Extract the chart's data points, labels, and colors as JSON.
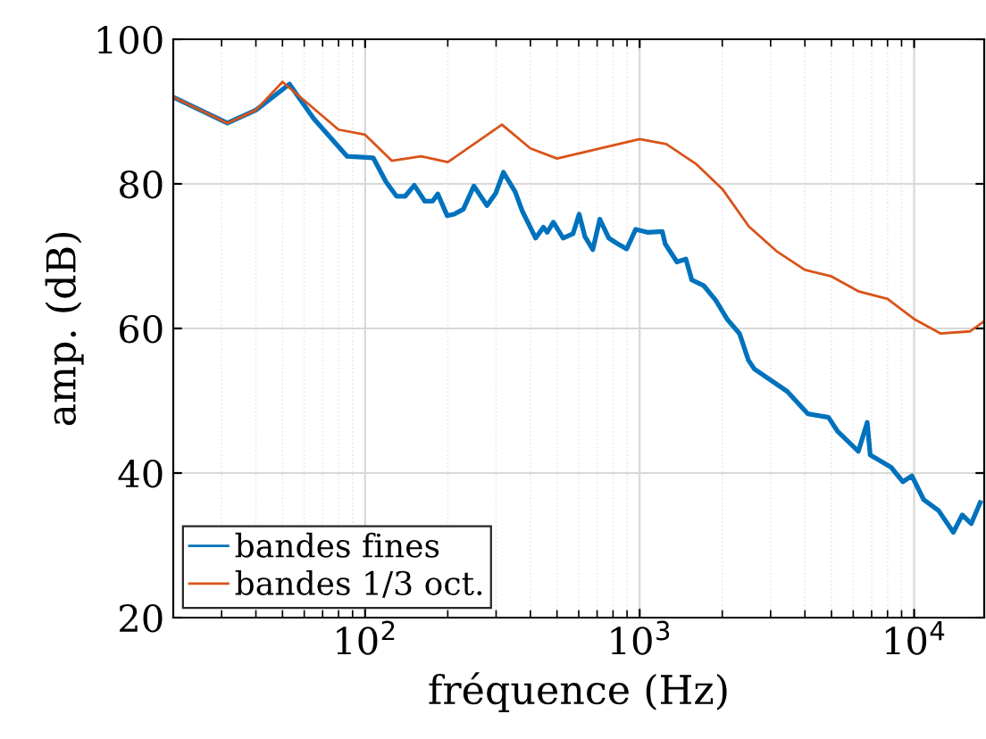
{
  "chart_data": {
    "type": "line",
    "xlabel": "fréquence (Hz)",
    "ylabel": "amp. (dB)",
    "log": "x",
    "grid": true,
    "legend": "bottom left",
    "xlim": [
      20,
      18000
    ],
    "ylim": [
      20,
      100
    ],
    "xticks": [
      {
        "value": 100,
        "label": "10$^{2}$"
      },
      {
        "value": 1000,
        "label": "10$^{3}$"
      },
      {
        "value": 10000,
        "label": "10$^{4}$"
      }
    ],
    "yticks": [
      20,
      40,
      60,
      80,
      100
    ],
    "series": [
      {
        "name": "bandes fines",
        "color": "#0072bd",
        "x": [
          20,
          31.5,
          40,
          53,
          65,
          86,
          107,
          119,
          130,
          140,
          151,
          165,
          176,
          184,
          199,
          211,
          228,
          249,
          278,
          299,
          319,
          352,
          374,
          418,
          446,
          461,
          485,
          526,
          572,
          602,
          632,
          675,
          716,
          772,
          832,
          897,
          967,
          1067,
          1209,
          1239,
          1368,
          1474,
          1549,
          1714,
          1893,
          2091,
          2311,
          2491,
          2616,
          3447,
          4096,
          4875,
          5255,
          6262,
          6746,
          6918,
          8238,
          9098,
          9813,
          10840,
          12280,
          13900,
          14970,
          16140,
          17400
        ],
        "values": [
          92.0,
          88.4,
          90.2,
          93.8,
          89.0,
          83.8,
          83.6,
          80.3,
          78.3,
          78.3,
          79.8,
          77.6,
          77.6,
          78.6,
          75.6,
          75.8,
          76.5,
          79.7,
          77.0,
          78.7,
          81.6,
          78.9,
          76.2,
          72.5,
          74.0,
          73.3,
          74.7,
          72.5,
          73.1,
          75.8,
          72.7,
          70.9,
          75.1,
          72.5,
          71.7,
          71.0,
          73.7,
          73.3,
          73.4,
          71.7,
          69.2,
          69.6,
          66.7,
          65.9,
          63.9,
          61.2,
          59.3,
          55.6,
          54.4,
          51.3,
          48.2,
          47.7,
          45.8,
          43.0,
          47.0,
          42.5,
          40.8,
          38.8,
          39.6,
          36.3,
          34.8,
          31.8,
          34.2,
          33.0,
          35.9
        ]
      },
      {
        "name": "bandes 1/3 oct.",
        "color": "#d95319",
        "x": [
          20,
          31.5,
          40,
          50,
          80,
          100,
          125,
          160,
          200,
          315,
          400,
          500,
          1000,
          1250,
          1600,
          2000,
          2500,
          3150,
          4000,
          5000,
          6300,
          8000,
          10000,
          12500,
          16000,
          18000
        ],
        "values": [
          92.0,
          88.4,
          90.2,
          94.1,
          87.5,
          86.8,
          83.2,
          83.8,
          83.0,
          88.2,
          84.9,
          83.5,
          86.2,
          85.5,
          82.8,
          79.3,
          74.1,
          70.7,
          68.1,
          67.2,
          65.1,
          64.1,
          61.3,
          59.3,
          59.6,
          61.0
        ]
      }
    ]
  }
}
